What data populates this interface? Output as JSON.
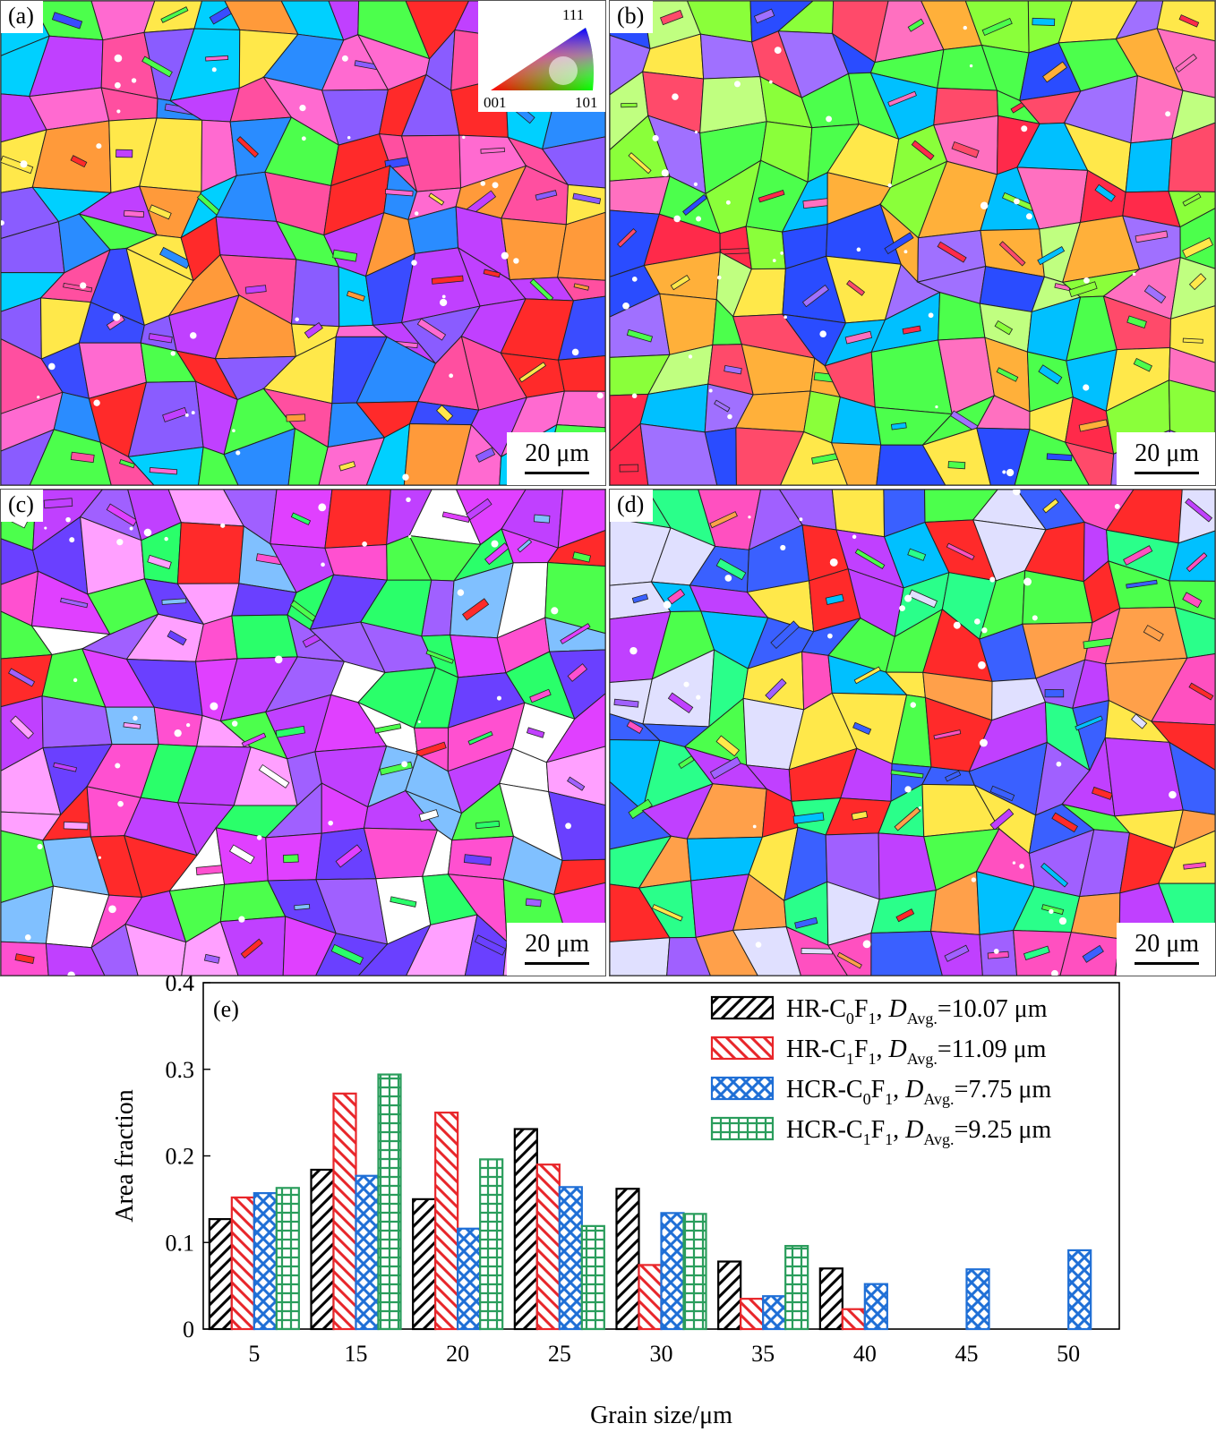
{
  "panels": [
    {
      "label": "(a)",
      "scale": "20 μm",
      "palette": [
        "#ff2a2a",
        "#ff4fa0",
        "#c040ff",
        "#3a4cff",
        "#2a8cff",
        "#4cff4c",
        "#ffe84a",
        "#ff9a3a",
        "#ff6ad0",
        "#8a5cff",
        "#00d0ff",
        "#ffffff"
      ]
    },
    {
      "label": "(b)",
      "scale": "20 μm",
      "palette": [
        "#ff2a4a",
        "#ff4a6a",
        "#4cff4c",
        "#8aff3a",
        "#ffe84a",
        "#ffb03a",
        "#2a4cff",
        "#00c0ff",
        "#c0ff80",
        "#ff70c0",
        "#a070ff",
        "#40ffb0"
      ]
    },
    {
      "label": "(c)",
      "scale": "20 μm",
      "palette": [
        "#c040ff",
        "#e040ff",
        "#ff50d0",
        "#4cff4c",
        "#2aff6a",
        "#ff2a2a",
        "#ffffff",
        "#80c0ff",
        "#a060ff",
        "#ffa0ff",
        "#6a40ff",
        "#b0ff40"
      ]
    },
    {
      "label": "(d)",
      "scale": "20 μm",
      "palette": [
        "#4cff4c",
        "#ff2a2a",
        "#ff50c0",
        "#a060ff",
        "#3a60ff",
        "#ffa04a",
        "#ffe84a",
        "#00c0ff",
        "#e0e0ff",
        "#c040ff",
        "#2aff8a",
        "#ff7a3a"
      ]
    }
  ],
  "ipf_key": {
    "top": "111",
    "left": "001",
    "right": "101"
  },
  "chart_data": {
    "type": "bar",
    "panel_label": "(e)",
    "xlabel": "Grain size/μm",
    "ylabel": "Area fraction",
    "ylim": [
      0,
      0.4
    ],
    "yticks": [
      "0",
      "0.1",
      "0.2",
      "0.3",
      "0.4"
    ],
    "categories": [
      "5",
      "15",
      "20",
      "25",
      "30",
      "35",
      "40",
      "45",
      "50"
    ],
    "series": [
      {
        "name": "HR-C0F1",
        "label_base": "HR-C",
        "sub1": "0",
        "mid": "F",
        "sub2": "1",
        "d_label": "D",
        "d_sub": "Avg.",
        "d_value": "=10.07 μm",
        "color": "#000000",
        "pattern": "diag-right",
        "values": [
          0.127,
          0.184,
          0.15,
          0.231,
          0.162,
          0.078,
          0.07,
          null,
          null
        ]
      },
      {
        "name": "HR-C1F1",
        "label_base": "HR-C",
        "sub1": "1",
        "mid": "F",
        "sub2": "1",
        "d_label": "D",
        "d_sub": "Avg.",
        "d_value": "=11.09 μm",
        "color": "#e8262a",
        "pattern": "diag-left",
        "values": [
          0.152,
          0.272,
          0.25,
          0.19,
          0.074,
          0.035,
          0.023,
          null,
          null
        ]
      },
      {
        "name": "HCR-C0F1",
        "label_base": "HCR-C",
        "sub1": "0",
        "mid": "F",
        "sub2": "1",
        "d_label": "D",
        "d_sub": "Avg.",
        "d_value": "=7.75 μm",
        "color": "#1f6fd6",
        "pattern": "cross",
        "values": [
          0.157,
          0.177,
          0.116,
          0.164,
          0.134,
          0.038,
          0.052,
          0.069,
          0.091
        ]
      },
      {
        "name": "HCR-C1F1",
        "label_base": "HCR-C",
        "sub1": "1",
        "mid": "F",
        "sub2": "1",
        "d_label": "D",
        "d_sub": "Avg.",
        "d_value": "=9.25 μm",
        "color": "#2a9d5c",
        "pattern": "grid",
        "values": [
          0.163,
          0.294,
          0.196,
          0.119,
          0.133,
          0.096,
          null,
          null,
          null
        ]
      }
    ]
  }
}
